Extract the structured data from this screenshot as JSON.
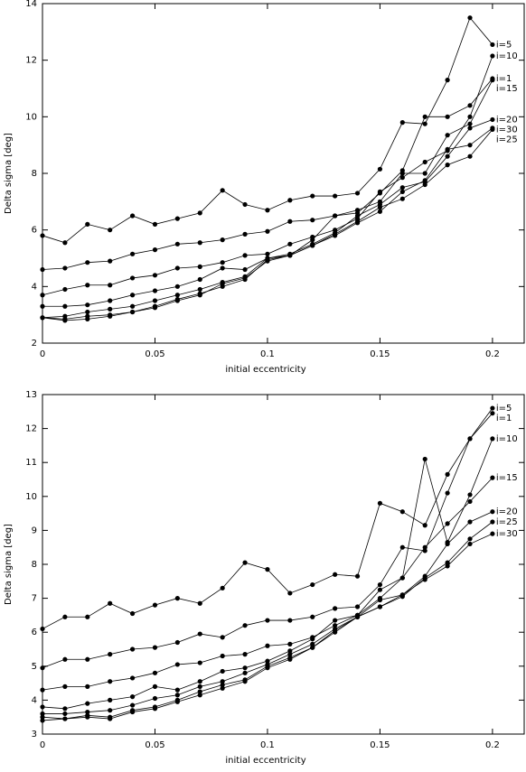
{
  "chart_data": [
    {
      "type": "line",
      "x_label": "initial eccentricity",
      "y_label": "Delta sigma [deg]",
      "x": [
        0,
        0.01,
        0.02,
        0.03,
        0.04,
        0.05,
        0.06,
        0.07,
        0.08,
        0.09,
        0.1,
        0.11,
        0.12,
        0.13,
        0.14,
        0.15,
        0.16,
        0.17,
        0.18,
        0.19,
        0.2
      ],
      "xlim": [
        0,
        0.2145
      ],
      "xticks": [
        0,
        0.05,
        0.1,
        0.15,
        0.2
      ],
      "ylim": [
        2,
        14
      ],
      "yticks": [
        2,
        4,
        6,
        8,
        10,
        12,
        14
      ],
      "series": [
        {
          "name": "i=5",
          "color": "#000000",
          "values": [
            5.8,
            5.55,
            6.2,
            6.0,
            6.5,
            6.2,
            6.4,
            6.6,
            7.4,
            6.9,
            6.7,
            7.05,
            7.2,
            7.2,
            7.3,
            8.15,
            9.8,
            9.75,
            11.3,
            13.5,
            12.55
          ]
        },
        {
          "name": "i=10",
          "color": "#000000",
          "values": [
            3.7,
            3.9,
            4.05,
            4.05,
            4.3,
            4.4,
            4.65,
            4.7,
            4.85,
            5.1,
            5.15,
            5.5,
            5.75,
            6.0,
            6.4,
            7.35,
            7.85,
            8.4,
            8.8,
            10.0,
            12.15
          ]
        },
        {
          "name": "i=1",
          "color": "#000000",
          "values": [
            4.6,
            4.65,
            4.85,
            4.9,
            5.15,
            5.3,
            5.5,
            5.55,
            5.65,
            5.85,
            5.95,
            6.3,
            6.35,
            6.5,
            6.6,
            7.3,
            8.1,
            10.0,
            10.0,
            10.4,
            11.35
          ]
        },
        {
          "name": "i=15",
          "color": "#000000",
          "values": [
            3.3,
            3.3,
            3.35,
            3.5,
            3.7,
            3.85,
            4.0,
            4.25,
            4.65,
            4.6,
            5.0,
            5.1,
            5.65,
            6.5,
            6.7,
            7.0,
            8.0,
            8.0,
            9.35,
            9.75,
            11.3
          ]
        },
        {
          "name": "i=20",
          "color": "#000000",
          "values": [
            2.9,
            2.95,
            3.1,
            3.2,
            3.3,
            3.5,
            3.7,
            3.9,
            4.15,
            4.35,
            5.0,
            5.15,
            5.5,
            5.9,
            6.5,
            6.9,
            7.5,
            7.7,
            8.6,
            9.6,
            9.9
          ]
        },
        {
          "name": "i=30",
          "color": "#000000",
          "values": [
            2.9,
            2.8,
            2.85,
            2.95,
            3.1,
            3.25,
            3.5,
            3.7,
            4.1,
            4.3,
            4.9,
            5.1,
            5.45,
            5.8,
            6.25,
            6.65,
            7.35,
            7.75,
            8.85,
            9.0,
            9.6
          ]
        },
        {
          "name": "i=25",
          "color": "#000000",
          "values": [
            2.9,
            2.85,
            2.95,
            3.0,
            3.1,
            3.3,
            3.55,
            3.75,
            4.0,
            4.25,
            4.95,
            5.1,
            5.45,
            5.85,
            6.3,
            6.8,
            7.1,
            7.6,
            8.3,
            8.6,
            9.55
          ]
        }
      ]
    },
    {
      "type": "line",
      "x_label": "initial eccentricity",
      "y_label": "Delta sigma [deg]",
      "x": [
        0,
        0.01,
        0.02,
        0.03,
        0.04,
        0.05,
        0.06,
        0.07,
        0.08,
        0.09,
        0.1,
        0.11,
        0.12,
        0.13,
        0.14,
        0.15,
        0.16,
        0.17,
        0.18,
        0.19,
        0.2
      ],
      "xlim": [
        0,
        0.2145
      ],
      "xticks": [
        0,
        0.05,
        0.1,
        0.15,
        0.2
      ],
      "ylim": [
        3,
        13
      ],
      "yticks": [
        3,
        4,
        5,
        6,
        7,
        8,
        9,
        10,
        11,
        12,
        13
      ],
      "series": [
        {
          "name": "i=5",
          "color": "#000000",
          "values": [
            6.1,
            6.45,
            6.45,
            6.85,
            6.55,
            6.8,
            7.0,
            6.85,
            7.3,
            8.05,
            7.85,
            7.15,
            7.4,
            7.7,
            7.65,
            9.8,
            9.55,
            9.15,
            10.65,
            11.7,
            12.6
          ]
        },
        {
          "name": "i=1",
          "color": "#000000",
          "values": [
            4.95,
            5.2,
            5.2,
            5.35,
            5.5,
            5.55,
            5.7,
            5.95,
            5.85,
            6.2,
            6.35,
            6.35,
            6.45,
            6.7,
            6.75,
            7.4,
            8.5,
            8.4,
            10.1,
            11.7,
            12.45
          ]
        },
        {
          "name": "i=10",
          "color": "#000000",
          "values": [
            4.3,
            4.4,
            4.4,
            4.55,
            4.65,
            4.8,
            5.05,
            5.1,
            5.3,
            5.35,
            5.6,
            5.65,
            5.85,
            6.2,
            6.5,
            7.25,
            7.6,
            11.1,
            8.65,
            10.05,
            11.7
          ]
        },
        {
          "name": "i=15",
          "color": "#000000",
          "values": [
            3.8,
            3.75,
            3.9,
            4.0,
            4.1,
            4.4,
            4.3,
            4.55,
            4.85,
            4.95,
            5.15,
            5.45,
            5.8,
            6.35,
            6.5,
            7.0,
            7.6,
            8.5,
            9.2,
            9.85,
            10.55
          ]
        },
        {
          "name": "i=20",
          "color": "#000000",
          "values": [
            3.6,
            3.6,
            3.65,
            3.7,
            3.85,
            4.05,
            4.15,
            4.4,
            4.55,
            4.8,
            5.05,
            5.35,
            5.65,
            6.1,
            6.45,
            6.95,
            7.1,
            7.65,
            8.6,
            9.25,
            9.55
          ]
        },
        {
          "name": "i=25",
          "color": "#000000",
          "values": [
            3.5,
            3.45,
            3.55,
            3.5,
            3.7,
            3.8,
            4.0,
            4.25,
            4.45,
            4.6,
            5.0,
            5.25,
            5.55,
            6.0,
            6.45,
            6.75,
            7.05,
            7.6,
            8.05,
            8.75,
            9.25
          ]
        },
        {
          "name": "i=30",
          "color": "#000000",
          "values": [
            3.4,
            3.45,
            3.5,
            3.45,
            3.65,
            3.75,
            3.95,
            4.15,
            4.35,
            4.55,
            4.95,
            5.2,
            5.55,
            6.05,
            6.45,
            6.75,
            7.1,
            7.55,
            7.95,
            8.6,
            8.9
          ]
        }
      ]
    }
  ]
}
